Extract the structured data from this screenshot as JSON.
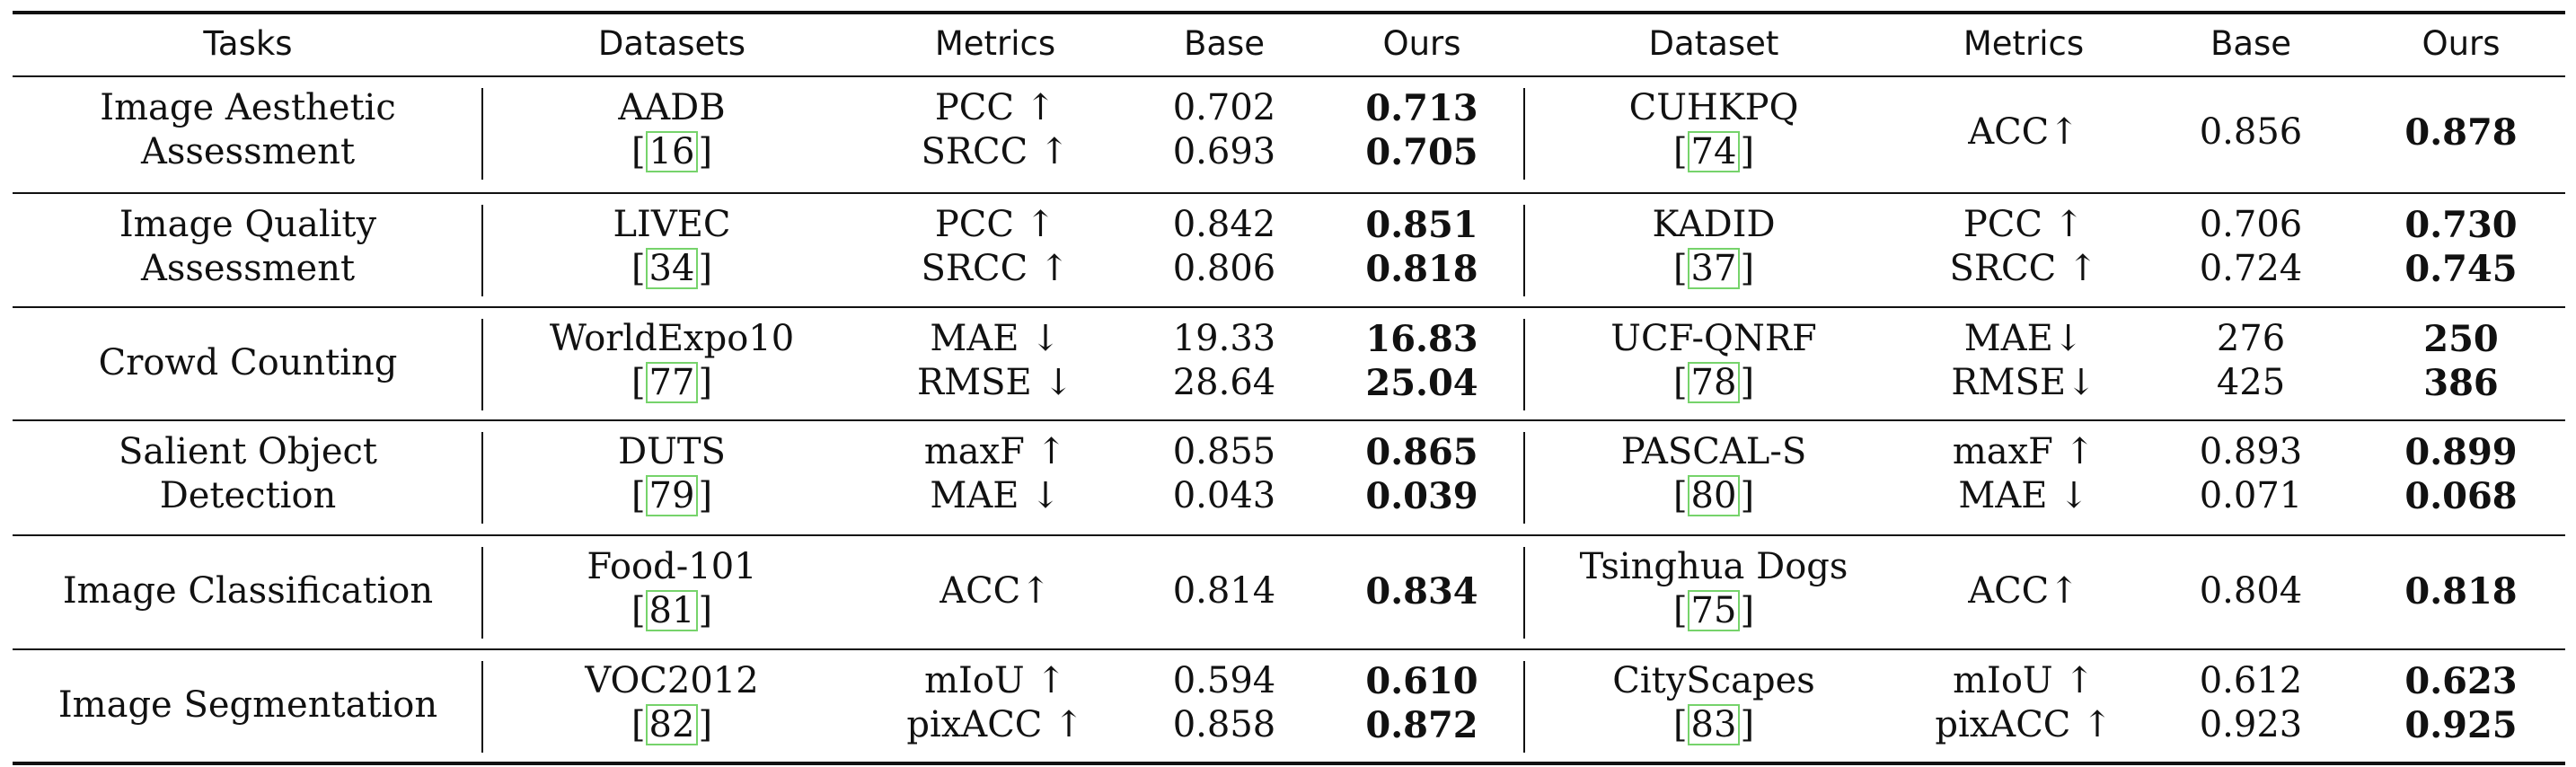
{
  "table": {
    "headers": {
      "tasks": "Tasks",
      "datasets": "Datasets",
      "metrics_left": "Metrics",
      "base_left": "Base",
      "ours_left": "Ours",
      "dataset_right": "Dataset",
      "metrics_right": "Metrics",
      "base_right": "Base",
      "ours_right": "Ours"
    },
    "rows": [
      {
        "task": "Image Aesthetic Assessment",
        "task_line1": "Image Aesthetic",
        "task_line2": "Assessment",
        "left": {
          "dataset": "AADB",
          "ref_open": "[",
          "ref_num": "16",
          "ref_close": "]",
          "metrics": [
            "PCC ↑",
            "SRCC ↑"
          ],
          "base": [
            "0.702",
            "0.693"
          ],
          "ours": [
            "0.713",
            "0.705"
          ]
        },
        "right": {
          "dataset": "CUHKPQ",
          "ref_open": "[",
          "ref_num": "74",
          "ref_close": "]",
          "metrics": [
            "ACC↑"
          ],
          "base": [
            "0.856"
          ],
          "ours": [
            "0.878"
          ]
        }
      },
      {
        "task": "Image Quality Assessment",
        "task_line1": "Image Quality",
        "task_line2": "Assessment",
        "left": {
          "dataset": "LIVEC",
          "ref_open": "[",
          "ref_num": "34",
          "ref_close": "]",
          "metrics": [
            "PCC ↑",
            "SRCC ↑"
          ],
          "base": [
            "0.842",
            "0.806"
          ],
          "ours": [
            "0.851",
            "0.818"
          ]
        },
        "right": {
          "dataset": "KADID",
          "ref_open": "[",
          "ref_num": "37",
          "ref_close": "]",
          "metrics": [
            "PCC ↑",
            "SRCC ↑"
          ],
          "base": [
            "0.706",
            "0.724"
          ],
          "ours": [
            "0.730",
            "0.745"
          ]
        }
      },
      {
        "task": "Crowd Counting",
        "left": {
          "dataset": "WorldExpo10",
          "ref_open": "[",
          "ref_num": "77",
          "ref_close": "]",
          "metrics": [
            "MAE ↓",
            "RMSE ↓"
          ],
          "base": [
            "19.33",
            "28.64"
          ],
          "ours": [
            "16.83",
            "25.04"
          ]
        },
        "right": {
          "dataset": "UCF-QNRF",
          "ref_open": "[",
          "ref_num": "78",
          "ref_close": "]",
          "metrics": [
            "MAE↓",
            "RMSE↓"
          ],
          "base": [
            "276",
            "425"
          ],
          "ours": [
            "250",
            "386"
          ]
        }
      },
      {
        "task": "Salient Object Detection",
        "task_line1": "Salient Object",
        "task_line2": "Detection",
        "left": {
          "dataset": "DUTS",
          "ref_open": "[",
          "ref_num": "79",
          "ref_close": "]",
          "metrics": [
            "maxF ↑",
            "MAE ↓"
          ],
          "base": [
            "0.855",
            "0.043"
          ],
          "ours": [
            "0.865",
            "0.039"
          ]
        },
        "right": {
          "dataset": "PASCAL-S",
          "ref_open": "[",
          "ref_num": "80",
          "ref_close": "]",
          "metrics": [
            "maxF ↑",
            "MAE ↓"
          ],
          "base": [
            "0.893",
            "0.071"
          ],
          "ours": [
            "0.899",
            "0.068"
          ]
        }
      },
      {
        "task": "Image Classification",
        "left": {
          "dataset": "Food-101",
          "ref_open": "[",
          "ref_num": "81",
          "ref_close": "]",
          "metrics": [
            "ACC↑"
          ],
          "base": [
            "0.814"
          ],
          "ours": [
            "0.834"
          ]
        },
        "right": {
          "dataset": "Tsinghua Dogs",
          "ref_open": "[",
          "ref_num": "75",
          "ref_close": "]",
          "metrics": [
            "ACC↑"
          ],
          "base": [
            "0.804"
          ],
          "ours": [
            "0.818"
          ]
        }
      },
      {
        "task": "Image Segmentation",
        "left": {
          "dataset": "VOC2012",
          "ref_open": "[",
          "ref_num": "82",
          "ref_close": "]",
          "metrics": [
            "mIoU ↑",
            "pixACC ↑"
          ],
          "base": [
            "0.594",
            "0.858"
          ],
          "ours": [
            "0.610",
            "0.872"
          ]
        },
        "right": {
          "dataset": "CityScapes",
          "ref_open": "[",
          "ref_num": "83",
          "ref_close": "]",
          "metrics": [
            "mIoU ↑",
            "pixACC ↑"
          ],
          "base": [
            "0.612",
            "0.923"
          ],
          "ours": [
            "0.623",
            "0.925"
          ]
        }
      }
    ],
    "colors": {
      "text": "#111111",
      "citation_box": "#76d36b"
    }
  }
}
